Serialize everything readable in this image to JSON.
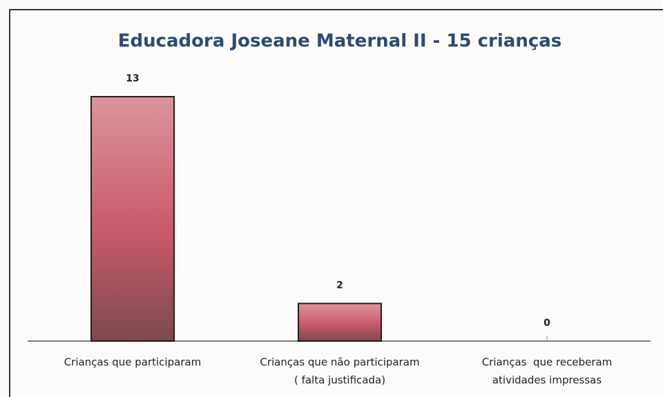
{
  "chart_data": {
    "type": "bar",
    "title": "Educadora Joseane Maternal II - 15 crianças",
    "categories": [
      [
        "Crianças que participaram"
      ],
      [
        "Crianças que não participaram",
        "( falta justificada)"
      ],
      [
        "Crianças  que receberam",
        "atividades impressas"
      ]
    ],
    "values": [
      13,
      2,
      0
    ],
    "color": "#c8606e"
  }
}
